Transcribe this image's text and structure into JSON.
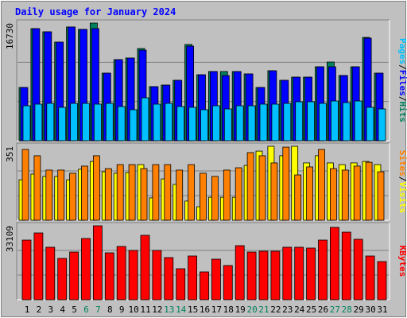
{
  "chart_data": [
    {
      "type": "bar",
      "title": "Daily usage for January 2024",
      "legend_separator": "/",
      "ylim": [
        0,
        16730
      ],
      "yticks": [
        16730
      ],
      "series": [
        {
          "name": "Pages",
          "color": "#00C0FF",
          "values": [
            4970,
            5200,
            5310,
            4750,
            5310,
            5310,
            5200,
            5310,
            4860,
            4410,
            6100,
            5200,
            5310,
            4860,
            4750,
            4410,
            4970,
            4520,
            4970,
            4970,
            5200,
            5200,
            5310,
            5540,
            5540,
            5310,
            5650,
            5420,
            5650,
            4750,
            4520
          ]
        },
        {
          "name": "Files",
          "color": "#0000FF",
          "values": [
            7570,
            15940,
            15490,
            14020,
            16170,
            15830,
            15940,
            9610,
            11530,
            11760,
            12880,
            7690,
            7910,
            8590,
            13450,
            9380,
            9840,
            9270,
            9840,
            9500,
            7570,
            9950,
            8590,
            9040,
            9040,
            10510,
            10510,
            9270,
            10510,
            14580,
            9610
          ]
        },
        {
          "name": "Hits",
          "color": "#00805C",
          "values": [
            7570,
            15940,
            15490,
            14020,
            16170,
            15830,
            16730,
            9610,
            11530,
            11760,
            13110,
            7690,
            7910,
            8590,
            13680,
            9380,
            9840,
            9840,
            9840,
            9500,
            7570,
            9950,
            8590,
            9040,
            9040,
            10510,
            11190,
            9270,
            10510,
            14690,
            9610
          ]
        }
      ]
    },
    {
      "type": "bar",
      "legend_separator": "/",
      "ylim": [
        0,
        351
      ],
      "yticks": [
        351
      ],
      "series": [
        {
          "name": "Sites",
          "color": "#FF8000",
          "values": [
            336,
            306,
            238,
            238,
            223,
            257,
            306,
            245,
            264,
            264,
            245,
            264,
            264,
            238,
            264,
            223,
            208,
            238,
            249,
            321,
            306,
            272,
            347,
            215,
            253,
            336,
            245,
            238,
            257,
            275,
            230
          ]
        },
        {
          "name": "Visits",
          "color": "#FFFF00",
          "values": [
            192,
            219,
            208,
            208,
            192,
            242,
            279,
            230,
            223,
            226,
            264,
            106,
            196,
            170,
            91,
            64,
            109,
            109,
            109,
            260,
            328,
            351,
            306,
            351,
            272,
            306,
            272,
            264,
            272,
            279,
            264
          ]
        }
      ]
    },
    {
      "type": "bar",
      "ylim": [
        0,
        33109
      ],
      "yticks": [
        33109
      ],
      "series": [
        {
          "name": "KBytes",
          "color": "#FF0000",
          "values": [
            26700,
            29900,
            23500,
            18500,
            21360,
            27420,
            33109,
            21000,
            23850,
            22070,
            28840,
            22070,
            18870,
            13880,
            19580,
            12460,
            18160,
            15310,
            24210,
            21360,
            21720,
            21720,
            23500,
            23500,
            23140,
            26700,
            32400,
            30260,
            27060,
            19580,
            17090
          ]
        }
      ],
      "categories": [
        "1",
        "2",
        "3",
        "4",
        "5",
        "6",
        "7",
        "8",
        "9",
        "10",
        "11",
        "12",
        "13",
        "14",
        "15",
        "16",
        "17",
        "18",
        "19",
        "20",
        "21",
        "22",
        "23",
        "24",
        "25",
        "26",
        "27",
        "28",
        "29",
        "30",
        "31"
      ],
      "category_colors": [
        "#000000",
        "#000000",
        "#000000",
        "#000000",
        "#000000",
        "#00805C",
        "#00805C",
        "#000000",
        "#000000",
        "#000000",
        "#000000",
        "#000000",
        "#00805C",
        "#00805C",
        "#000000",
        "#000000",
        "#000000",
        "#000000",
        "#000000",
        "#00805C",
        "#00805C",
        "#000000",
        "#000000",
        "#000000",
        "#000000",
        "#000000",
        "#00805C",
        "#00805C",
        "#000000",
        "#000000",
        "#000000"
      ]
    }
  ]
}
